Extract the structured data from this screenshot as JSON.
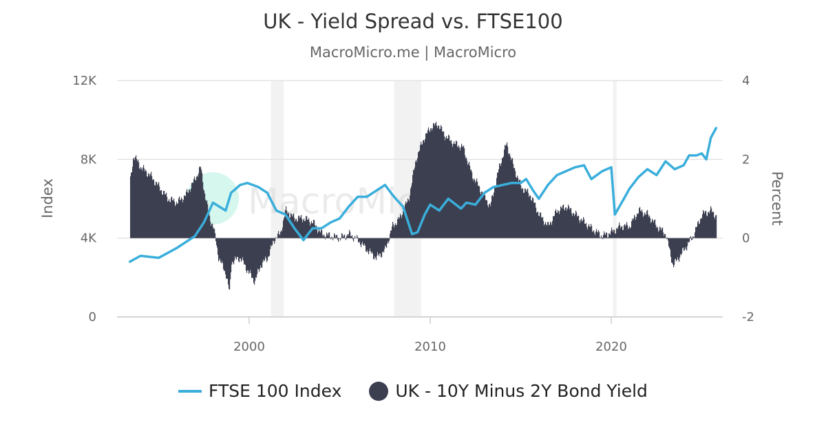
{
  "chart_data": {
    "type": "line",
    "title": "UK - Yield Spread vs. FTSE100",
    "subtitle": "MacroMicro.me | MacroMicro",
    "watermark": "MacroMicro",
    "x_ticks": [
      "2000",
      "2010",
      "2020"
    ],
    "xlim": [
      1993.4,
      2025.8
    ],
    "left_axis": {
      "label": "Index",
      "ylim": [
        0,
        12000
      ],
      "ticks": [
        "0",
        "4K",
        "8K",
        "12K"
      ]
    },
    "right_axis": {
      "label": "Percent",
      "ylim": [
        -2,
        4
      ],
      "ticks": [
        "-2",
        "0",
        "2",
        "4"
      ]
    },
    "grid": true,
    "legend_position": "bottom",
    "recessions": [
      [
        2001.2,
        2001.9
      ],
      [
        2008.0,
        2009.5
      ],
      [
        2020.1,
        2020.3
      ]
    ],
    "colors": {
      "ftse": "#3aaedb",
      "spread": "#3c3f50",
      "recession": "#f2f2f2"
    },
    "series": [
      {
        "name": "FTSE 100 Index",
        "axis": "left",
        "type": "line",
        "x": [
          1993.4,
          1994,
          1995,
          1996,
          1997,
          1997.5,
          1998,
          1998.7,
          1999,
          1999.5,
          1999.9,
          2000.5,
          2001,
          2001.5,
          2002,
          2002.5,
          2003,
          2003.5,
          2004,
          2004.5,
          2005,
          2005.5,
          2006,
          2006.5,
          2007,
          2007.5,
          2008,
          2008.5,
          2009,
          2009.3,
          2009.7,
          2010,
          2010.5,
          2011,
          2011.7,
          2012,
          2012.5,
          2013,
          2013.5,
          2014,
          2014.5,
          2015,
          2015.3,
          2015.7,
          2016,
          2016.5,
          2017,
          2017.5,
          2018,
          2018.5,
          2018.9,
          2019.5,
          2020,
          2020.2,
          2020.7,
          2021,
          2021.5,
          2022,
          2022.5,
          2023,
          2023.5,
          2024,
          2024.3,
          2024.7,
          2025,
          2025.25,
          2025.5,
          2025.8
        ],
        "y": [
          2800,
          3100,
          3000,
          3500,
          4100,
          4800,
          5800,
          5400,
          6300,
          6700,
          6800,
          6600,
          6300,
          5400,
          5200,
          4500,
          3900,
          4500,
          4500,
          4800,
          5000,
          5600,
          6100,
          6100,
          6400,
          6700,
          6100,
          5600,
          4200,
          4300,
          5200,
          5700,
          5400,
          6000,
          5500,
          5800,
          5700,
          6300,
          6600,
          6700,
          6800,
          6800,
          7000,
          6400,
          6000,
          6700,
          7200,
          7400,
          7600,
          7700,
          7000,
          7400,
          7600,
          5200,
          6000,
          6500,
          7100,
          7500,
          7200,
          7900,
          7500,
          7700,
          8200,
          8200,
          8300,
          8000,
          9100,
          9600
        ]
      },
      {
        "name": "UK - 10Y Minus 2Y Bond Yield",
        "axis": "right",
        "type": "column",
        "x": [
          1993.4,
          1993.6,
          1994,
          1994.5,
          1995,
          1995.5,
          1996,
          1996.5,
          1997,
          1997.3,
          1997.5,
          1997.8,
          1998,
          1998.3,
          1998.7,
          1998.9,
          1999,
          1999.5,
          2000,
          2000.3,
          2000.6,
          2001,
          2001.4,
          2001.7,
          2002,
          2002.5,
          2003,
          2003.5,
          2004,
          2004.5,
          2005,
          2005.5,
          2006,
          2006.5,
          2007,
          2007.5,
          2007.9,
          2008.3,
          2008.8,
          2009.2,
          2009.6,
          2010,
          2010.4,
          2010.8,
          2011.3,
          2011.8,
          2012.3,
          2012.8,
          2013.3,
          2013.8,
          2014.2,
          2014.6,
          2015,
          2015.5,
          2016,
          2016.5,
          2017,
          2017.5,
          2018,
          2018.5,
          2019,
          2019.5,
          2020,
          2020.5,
          2021,
          2021.5,
          2022,
          2022.5,
          2023,
          2023.4,
          2023.7,
          2024,
          2024.5,
          2025,
          2025.5,
          2025.8
        ],
        "y": [
          1.4,
          2.1,
          1.8,
          1.6,
          1.3,
          1.0,
          0.9,
          1.1,
          1.5,
          1.8,
          1.2,
          0.5,
          0.3,
          -0.5,
          -0.9,
          -1.4,
          -0.6,
          -0.5,
          -0.9,
          -1.1,
          -0.7,
          -0.5,
          0.0,
          0.1,
          0.7,
          0.5,
          0.5,
          0.4,
          0.1,
          0.05,
          0.0,
          0.1,
          -0.05,
          -0.3,
          -0.5,
          -0.3,
          0.3,
          0.5,
          1.0,
          2.0,
          2.5,
          2.8,
          2.9,
          2.6,
          2.4,
          2.3,
          1.6,
          1.2,
          0.8,
          1.8,
          2.4,
          1.8,
          1.3,
          1.1,
          0.6,
          0.3,
          0.7,
          0.8,
          0.6,
          0.4,
          0.2,
          0.05,
          0.15,
          0.3,
          0.3,
          0.7,
          0.6,
          0.3,
          0.1,
          -0.7,
          -0.5,
          -0.3,
          0.05,
          0.6,
          0.7,
          0.55
        ]
      }
    ]
  }
}
